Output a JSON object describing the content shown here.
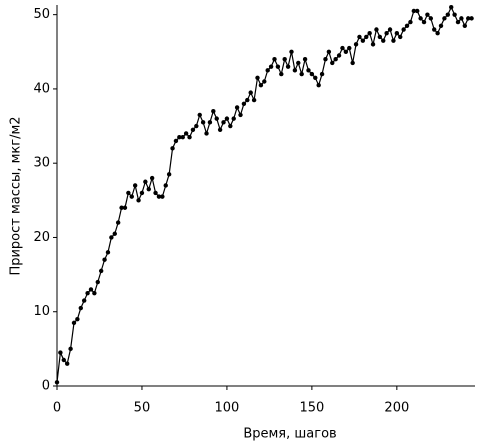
{
  "chart_data": {
    "type": "line",
    "xlabel": "Время, шагов",
    "ylabel": "Прирост массы, мкг/м2",
    "x": [
      0,
      2,
      4,
      6,
      8,
      10,
      12,
      14,
      16,
      18,
      20,
      22,
      24,
      26,
      28,
      30,
      32,
      34,
      36,
      38,
      40,
      42,
      44,
      46,
      48,
      50,
      52,
      54,
      56,
      58,
      60,
      62,
      64,
      66,
      68,
      70,
      72,
      74,
      76,
      78,
      80,
      82,
      84,
      86,
      88,
      90,
      92,
      94,
      96,
      98,
      100,
      102,
      104,
      106,
      108,
      110,
      112,
      114,
      116,
      118,
      120,
      122,
      124,
      126,
      128,
      130,
      132,
      134,
      136,
      138,
      140,
      142,
      144,
      146,
      148,
      150,
      152,
      154,
      156,
      158,
      160,
      162,
      164,
      166,
      168,
      170,
      172,
      174,
      176,
      178,
      180,
      182,
      184,
      186,
      188,
      190,
      192,
      194,
      196,
      198,
      200,
      202,
      204,
      206,
      208,
      210,
      212,
      214,
      216,
      218,
      220,
      222,
      224,
      226,
      228,
      230,
      232,
      234,
      236,
      238,
      240,
      242,
      244
    ],
    "series": [
      {
        "color": "#000000",
        "values": [
          0.5,
          4.5,
          3.5,
          3,
          5,
          8.5,
          9,
          10.5,
          11.5,
          12.5,
          13,
          12.5,
          14,
          15.5,
          17,
          18,
          20,
          20.5,
          22,
          24,
          24,
          26,
          25.5,
          27,
          25,
          26,
          27.5,
          26.5,
          28,
          26,
          25.5,
          25.5,
          27,
          28.5,
          32,
          33,
          33.5,
          33.5,
          34,
          33.5,
          34.5,
          35,
          36.5,
          35.5,
          34,
          35.5,
          37,
          36,
          34.5,
          35.5,
          36,
          35,
          36,
          37.5,
          36.5,
          38,
          38.5,
          39.5,
          38.5,
          41.5,
          40.5,
          41,
          42.5,
          43,
          44,
          43,
          42,
          44,
          43,
          45,
          42.5,
          43.5,
          42,
          44,
          42.5,
          42,
          41.5,
          40.5,
          42,
          44,
          45,
          43.5,
          44,
          44.5,
          45.5,
          45,
          45.5,
          43.5,
          46,
          47,
          46.5,
          47,
          47.5,
          46,
          48,
          47,
          46.5,
          47.5,
          48,
          46.5,
          47.5,
          47,
          48,
          48.5,
          49,
          50.5,
          50.5,
          49.5,
          49,
          50,
          49.5,
          48,
          47.5,
          48.5,
          49.5,
          50,
          51,
          50,
          49,
          49.5,
          48.5,
          49.5,
          49.5
        ]
      }
    ],
    "xlim": [
      0,
      246
    ],
    "ylim": [
      0,
      51.3
    ],
    "xticks": [
      0,
      50,
      100,
      150,
      200
    ],
    "yticks": [
      0,
      10,
      20,
      30,
      40,
      50
    ]
  }
}
